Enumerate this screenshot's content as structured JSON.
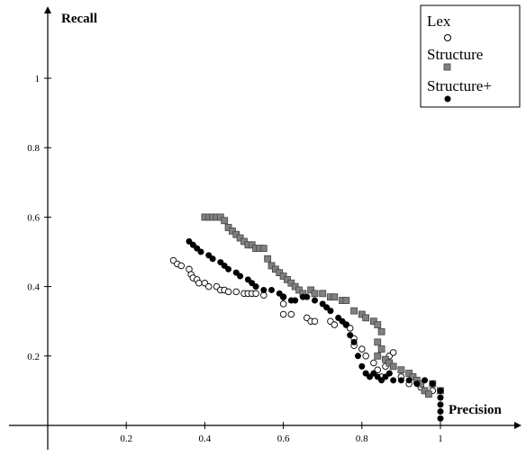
{
  "chart_data": {
    "type": "scatter",
    "xlabel": "Precision",
    "ylabel": "Recall",
    "xlim": [
      0,
      1.2
    ],
    "ylim": [
      0,
      1.2
    ],
    "x_ticks": [
      "0.2",
      "0.4",
      "0.6",
      "0.8",
      "1"
    ],
    "y_ticks": [
      "0.2",
      "0.4",
      "0.6",
      "0.8",
      "1"
    ],
    "legend_position": "top-right",
    "grid": false,
    "series": [
      {
        "name": "Lex",
        "marker": "open-circle",
        "color": "#000000",
        "points": [
          [
            0.32,
            0.475
          ],
          [
            0.33,
            0.465
          ],
          [
            0.34,
            0.46
          ],
          [
            0.36,
            0.45
          ],
          [
            0.365,
            0.435
          ],
          [
            0.37,
            0.425
          ],
          [
            0.38,
            0.42
          ],
          [
            0.385,
            0.41
          ],
          [
            0.4,
            0.41
          ],
          [
            0.41,
            0.4
          ],
          [
            0.43,
            0.4
          ],
          [
            0.44,
            0.39
          ],
          [
            0.45,
            0.39
          ],
          [
            0.46,
            0.385
          ],
          [
            0.48,
            0.385
          ],
          [
            0.5,
            0.38
          ],
          [
            0.51,
            0.38
          ],
          [
            0.52,
            0.38
          ],
          [
            0.53,
            0.38
          ],
          [
            0.55,
            0.375
          ],
          [
            0.6,
            0.37
          ],
          [
            0.6,
            0.35
          ],
          [
            0.6,
            0.32
          ],
          [
            0.62,
            0.32
          ],
          [
            0.66,
            0.31
          ],
          [
            0.67,
            0.3
          ],
          [
            0.68,
            0.3
          ],
          [
            0.72,
            0.3
          ],
          [
            0.73,
            0.29
          ],
          [
            0.76,
            0.29
          ],
          [
            0.77,
            0.28
          ],
          [
            0.78,
            0.25
          ],
          [
            0.78,
            0.23
          ],
          [
            0.8,
            0.22
          ],
          [
            0.81,
            0.2
          ],
          [
            0.83,
            0.18
          ],
          [
            0.84,
            0.16
          ],
          [
            0.85,
            0.14
          ],
          [
            0.86,
            0.17
          ],
          [
            0.87,
            0.2
          ],
          [
            0.88,
            0.21
          ],
          [
            0.9,
            0.14
          ],
          [
            0.92,
            0.12
          ],
          [
            0.95,
            0.11
          ],
          [
            0.96,
            0.1
          ],
          [
            0.98,
            0.1
          ]
        ]
      },
      {
        "name": "Structure",
        "marker": "gray-square",
        "color": "#808080",
        "points": [
          [
            0.4,
            0.6
          ],
          [
            0.41,
            0.6
          ],
          [
            0.42,
            0.6
          ],
          [
            0.43,
            0.6
          ],
          [
            0.44,
            0.6
          ],
          [
            0.45,
            0.59
          ],
          [
            0.46,
            0.57
          ],
          [
            0.47,
            0.56
          ],
          [
            0.48,
            0.55
          ],
          [
            0.49,
            0.54
          ],
          [
            0.5,
            0.53
          ],
          [
            0.51,
            0.52
          ],
          [
            0.52,
            0.52
          ],
          [
            0.53,
            0.51
          ],
          [
            0.54,
            0.51
          ],
          [
            0.55,
            0.51
          ],
          [
            0.56,
            0.48
          ],
          [
            0.57,
            0.46
          ],
          [
            0.58,
            0.45
          ],
          [
            0.59,
            0.44
          ],
          [
            0.6,
            0.43
          ],
          [
            0.61,
            0.42
          ],
          [
            0.62,
            0.41
          ],
          [
            0.63,
            0.4
          ],
          [
            0.64,
            0.39
          ],
          [
            0.65,
            0.38
          ],
          [
            0.67,
            0.39
          ],
          [
            0.68,
            0.38
          ],
          [
            0.7,
            0.38
          ],
          [
            0.72,
            0.37
          ],
          [
            0.73,
            0.37
          ],
          [
            0.75,
            0.36
          ],
          [
            0.76,
            0.36
          ],
          [
            0.78,
            0.33
          ],
          [
            0.8,
            0.32
          ],
          [
            0.81,
            0.31
          ],
          [
            0.83,
            0.3
          ],
          [
            0.84,
            0.29
          ],
          [
            0.85,
            0.27
          ],
          [
            0.84,
            0.24
          ],
          [
            0.85,
            0.22
          ],
          [
            0.84,
            0.2
          ],
          [
            0.86,
            0.19
          ],
          [
            0.87,
            0.18
          ],
          [
            0.88,
            0.17
          ],
          [
            0.9,
            0.16
          ],
          [
            0.92,
            0.15
          ],
          [
            0.93,
            0.14
          ],
          [
            0.94,
            0.13
          ],
          [
            0.95,
            0.12
          ],
          [
            0.96,
            0.1
          ],
          [
            0.97,
            0.09
          ],
          [
            0.98,
            0.12
          ],
          [
            1.0,
            0.1
          ]
        ]
      },
      {
        "name": "Structure+",
        "marker": "filled-circle",
        "color": "#000000",
        "points": [
          [
            0.36,
            0.53
          ],
          [
            0.37,
            0.52
          ],
          [
            0.38,
            0.51
          ],
          [
            0.39,
            0.5
          ],
          [
            0.41,
            0.49
          ],
          [
            0.42,
            0.48
          ],
          [
            0.44,
            0.47
          ],
          [
            0.45,
            0.46
          ],
          [
            0.46,
            0.45
          ],
          [
            0.48,
            0.44
          ],
          [
            0.49,
            0.43
          ],
          [
            0.51,
            0.42
          ],
          [
            0.52,
            0.41
          ],
          [
            0.53,
            0.4
          ],
          [
            0.55,
            0.39
          ],
          [
            0.57,
            0.39
          ],
          [
            0.59,
            0.38
          ],
          [
            0.6,
            0.37
          ],
          [
            0.62,
            0.36
          ],
          [
            0.63,
            0.36
          ],
          [
            0.65,
            0.37
          ],
          [
            0.66,
            0.37
          ],
          [
            0.68,
            0.36
          ],
          [
            0.7,
            0.35
          ],
          [
            0.71,
            0.34
          ],
          [
            0.72,
            0.33
          ],
          [
            0.74,
            0.31
          ],
          [
            0.75,
            0.3
          ],
          [
            0.76,
            0.29
          ],
          [
            0.77,
            0.26
          ],
          [
            0.78,
            0.24
          ],
          [
            0.79,
            0.2
          ],
          [
            0.8,
            0.17
          ],
          [
            0.81,
            0.15
          ],
          [
            0.82,
            0.14
          ],
          [
            0.83,
            0.15
          ],
          [
            0.84,
            0.14
          ],
          [
            0.85,
            0.13
          ],
          [
            0.86,
            0.14
          ],
          [
            0.87,
            0.15
          ],
          [
            0.88,
            0.13
          ],
          [
            0.9,
            0.13
          ],
          [
            0.92,
            0.13
          ],
          [
            0.94,
            0.12
          ],
          [
            0.96,
            0.13
          ],
          [
            0.98,
            0.12
          ],
          [
            1.0,
            0.1
          ],
          [
            1.0,
            0.08
          ],
          [
            1.0,
            0.06
          ],
          [
            1.0,
            0.04
          ],
          [
            1.0,
            0.02
          ]
        ]
      }
    ]
  }
}
